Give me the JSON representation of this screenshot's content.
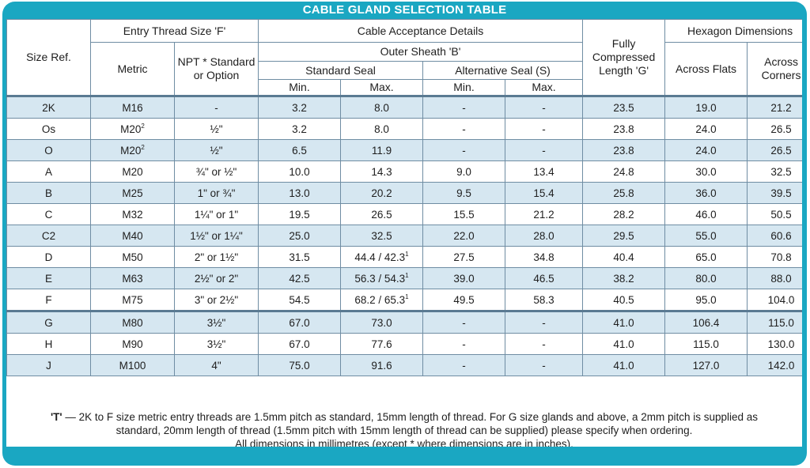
{
  "title": "CABLE GLAND SELECTION TABLE",
  "headers": {
    "size_ref": "Size Ref.",
    "entry_thread": "Entry Thread Size 'F'",
    "metric": "Metric",
    "npt": "NPT * Standard or Option",
    "cable_acceptance": "Cable Acceptance Details",
    "outer_sheath": "Outer Sheath 'B'",
    "standard_seal": "Standard Seal",
    "alternative_seal": "Alternative Seal (S)",
    "min": "Min.",
    "max": "Max.",
    "compressed_length": "Fully Compressed Length 'G'",
    "hexagon": "Hexagon Dimensions",
    "across_flats": "Across Flats",
    "across_corners": "Across Corners"
  },
  "rows": [
    {
      "size": "2K",
      "metric": "M16",
      "metric_sup": "",
      "npt": "-",
      "std_min": "3.2",
      "std_max": "8.0",
      "std_max_sup": "",
      "alt_min": "-",
      "alt_max": "-",
      "length": "23.5",
      "flats": "19.0",
      "corners": "21.2"
    },
    {
      "size": "Os",
      "metric": "M20",
      "metric_sup": "2",
      "npt": "½\"",
      "std_min": "3.2",
      "std_max": "8.0",
      "std_max_sup": "",
      "alt_min": "-",
      "alt_max": "-",
      "length": "23.8",
      "flats": "24.0",
      "corners": "26.5"
    },
    {
      "size": "O",
      "metric": "M20",
      "metric_sup": "2",
      "npt": "½\"",
      "std_min": "6.5",
      "std_max": "11.9",
      "std_max_sup": "",
      "alt_min": "-",
      "alt_max": "-",
      "length": "23.8",
      "flats": "24.0",
      "corners": "26.5"
    },
    {
      "size": "A",
      "metric": "M20",
      "metric_sup": "",
      "npt": "¾\" or ½\"",
      "std_min": "10.0",
      "std_max": "14.3",
      "std_max_sup": "",
      "alt_min": "9.0",
      "alt_max": "13.4",
      "length": "24.8",
      "flats": "30.0",
      "corners": "32.5"
    },
    {
      "size": "B",
      "metric": "M25",
      "metric_sup": "",
      "npt": "1\" or ¾\"",
      "std_min": "13.0",
      "std_max": "20.2",
      "std_max_sup": "",
      "alt_min": "9.5",
      "alt_max": "15.4",
      "length": "25.8",
      "flats": "36.0",
      "corners": "39.5"
    },
    {
      "size": "C",
      "metric": "M32",
      "metric_sup": "",
      "npt": "1¼\" or 1\"",
      "std_min": "19.5",
      "std_max": "26.5",
      "std_max_sup": "",
      "alt_min": "15.5",
      "alt_max": "21.2",
      "length": "28.2",
      "flats": "46.0",
      "corners": "50.5"
    },
    {
      "size": "C2",
      "metric": "M40",
      "metric_sup": "",
      "npt": "1½\" or 1¼\"",
      "std_min": "25.0",
      "std_max": "32.5",
      "std_max_sup": "",
      "alt_min": "22.0",
      "alt_max": "28.0",
      "length": "29.5",
      "flats": "55.0",
      "corners": "60.6"
    },
    {
      "size": "D",
      "metric": "M50",
      "metric_sup": "",
      "npt": "2\" or 1½\"",
      "std_min": "31.5",
      "std_max": "44.4 / 42.3",
      "std_max_sup": "1",
      "alt_min": "27.5",
      "alt_max": "34.8",
      "length": "40.4",
      "flats": "65.0",
      "corners": "70.8"
    },
    {
      "size": "E",
      "metric": "M63",
      "metric_sup": "",
      "npt": "2½\" or 2\"",
      "std_min": "42.5",
      "std_max": "56.3 / 54.3",
      "std_max_sup": "1",
      "alt_min": "39.0",
      "alt_max": "46.5",
      "length": "38.2",
      "flats": "80.0",
      "corners": "88.0"
    },
    {
      "size": "F",
      "metric": "M75",
      "metric_sup": "",
      "npt": "3\" or 2½\"",
      "std_min": "54.5",
      "std_max": "68.2 / 65.3",
      "std_max_sup": "1",
      "alt_min": "49.5",
      "alt_max": "58.3",
      "length": "40.5",
      "flats": "95.0",
      "corners": "104.0"
    },
    {
      "size": "G",
      "metric": "M80",
      "metric_sup": "",
      "npt": "3½\"",
      "std_min": "67.0",
      "std_max": "73.0",
      "std_max_sup": "",
      "alt_min": "-",
      "alt_max": "-",
      "length": "41.0",
      "flats": "106.4",
      "corners": "115.0"
    },
    {
      "size": "H",
      "metric": "M90",
      "metric_sup": "",
      "npt": "3½\"",
      "std_min": "67.0",
      "std_max": "77.6",
      "std_max_sup": "",
      "alt_min": "-",
      "alt_max": "-",
      "length": "41.0",
      "flats": "115.0",
      "corners": "130.0"
    },
    {
      "size": "J",
      "metric": "M100",
      "metric_sup": "",
      "npt": "4\"",
      "std_min": "75.0",
      "std_max": "91.6",
      "std_max_sup": "",
      "alt_min": "-",
      "alt_max": "-",
      "length": "41.0",
      "flats": "127.0",
      "corners": "142.0"
    }
  ],
  "notes": {
    "marker": "'T'",
    "line1": " — 2K to F size metric entry threads are 1.5mm pitch as standard, 15mm length of thread. For G size glands and above, a 2mm pitch is supplied as",
    "line2": "standard, 20mm length of thread (1.5mm pitch with 15mm length  of thread can be supplied) please specify when ordering.",
    "line3": "All dimensions in millimetres (except * where dimensions are in inches)."
  },
  "colors": {
    "frame": "#1aa7c2",
    "shaded_row": "#d6e7f1",
    "grid": "#6f8da3"
  }
}
